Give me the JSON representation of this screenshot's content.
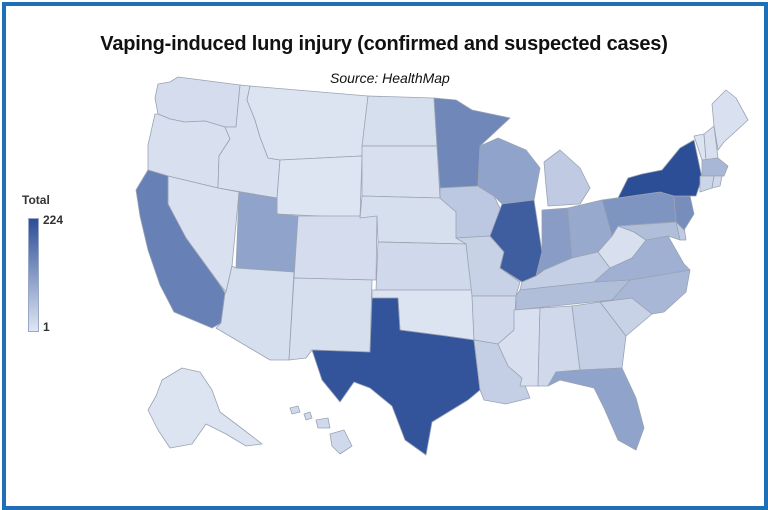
{
  "title": "Vaping-induced lung injury (confirmed and suspected cases)",
  "subtitle": "Source: HealthMap",
  "legend": {
    "title": "Total",
    "max_label": "224",
    "min_label": "1",
    "max_value": 224,
    "min_value": 1,
    "color_low": "#dfe6f3",
    "color_high": "#2c4e96"
  },
  "colors": {
    "frame": "#1f6fb8",
    "border": "#9aa3b3"
  },
  "states": [
    {
      "id": "WA",
      "value": 15
    },
    {
      "id": "OR",
      "value": 10
    },
    {
      "id": "ID",
      "value": 8
    },
    {
      "id": "MT",
      "value": 5
    },
    {
      "id": "WY",
      "value": 3
    },
    {
      "id": "ND",
      "value": 12
    },
    {
      "id": "SD",
      "value": 10
    },
    {
      "id": "NE",
      "value": 12
    },
    {
      "id": "KS",
      "value": 20
    },
    {
      "id": "OK",
      "value": 5
    },
    {
      "id": "TX",
      "value": 215
    },
    {
      "id": "NM",
      "value": 12
    },
    {
      "id": "CO",
      "value": 15
    },
    {
      "id": "UT",
      "value": 100
    },
    {
      "id": "NV",
      "value": 8
    },
    {
      "id": "CA",
      "value": 150
    },
    {
      "id": "AZ",
      "value": 12
    },
    {
      "id": "MN",
      "value": 140
    },
    {
      "id": "IA",
      "value": 45
    },
    {
      "id": "MO",
      "value": 30
    },
    {
      "id": "AR",
      "value": 20
    },
    {
      "id": "LA",
      "value": 35
    },
    {
      "id": "WI",
      "value": 100
    },
    {
      "id": "IL",
      "value": 200
    },
    {
      "id": "MI",
      "value": 40
    },
    {
      "id": "IN",
      "value": 110
    },
    {
      "id": "OH",
      "value": 90
    },
    {
      "id": "KY",
      "value": 35
    },
    {
      "id": "TN",
      "value": 60
    },
    {
      "id": "MS",
      "value": 10
    },
    {
      "id": "AL",
      "value": 20
    },
    {
      "id": "GA",
      "value": 35
    },
    {
      "id": "FL",
      "value": 100
    },
    {
      "id": "SC",
      "value": 30
    },
    {
      "id": "NC",
      "value": 70
    },
    {
      "id": "VA",
      "value": 80
    },
    {
      "id": "WV",
      "value": 10
    },
    {
      "id": "PA",
      "value": 120
    },
    {
      "id": "NY",
      "value": 224
    },
    {
      "id": "NJ",
      "value": 130
    },
    {
      "id": "DE",
      "value": 40
    },
    {
      "id": "MD",
      "value": 60
    },
    {
      "id": "VT",
      "value": 5
    },
    {
      "id": "NH",
      "value": 10
    },
    {
      "id": "ME",
      "value": 8
    },
    {
      "id": "MA",
      "value": 70
    },
    {
      "id": "CT",
      "value": 25
    },
    {
      "id": "RI",
      "value": 20
    },
    {
      "id": "AK",
      "value": 5
    },
    {
      "id": "HI",
      "value": 20
    }
  ]
}
